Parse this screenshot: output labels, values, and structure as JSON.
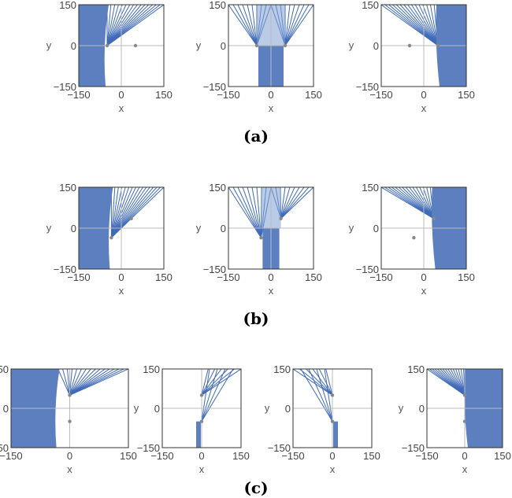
{
  "figure": {
    "axis_labels": {
      "x": "x",
      "y": "y"
    },
    "ticks": [
      "−150",
      "0",
      "150"
    ],
    "ticks_compact": [
      "−150",
      "0",
      "150"
    ],
    "range": [
      -150,
      150
    ],
    "colors": {
      "fill": "#5B7FBF",
      "fill_light": "#7FA0D4",
      "line": "#3F6AB8",
      "point": "#888888",
      "frame": "#333333",
      "axis": "#bbbbbb"
    },
    "rows": [
      {
        "caption": "(a)",
        "panels": [
          {
            "points": [
              [
                -50,
                0
              ],
              [
                50,
                0
              ]
            ],
            "band": "left"
          },
          {
            "points": [
              [
                -50,
                0
              ],
              [
                50,
                0
              ]
            ],
            "band": "center"
          },
          {
            "points": [
              [
                -50,
                0
              ],
              [
                50,
                0
              ]
            ],
            "band": "right"
          }
        ]
      },
      {
        "caption": "(b)",
        "panels": [
          {
            "points": [
              [
                -35,
                -35
              ],
              [
                35,
                35
              ]
            ],
            "band": "left"
          },
          {
            "points": [
              [
                -35,
                -35
              ],
              [
                35,
                35
              ]
            ],
            "band": "center"
          },
          {
            "points": [
              [
                -35,
                -35
              ],
              [
                35,
                35
              ]
            ],
            "band": "right"
          }
        ]
      },
      {
        "caption": "(c)",
        "panels": [
          {
            "points": [
              [
                0,
                50
              ],
              [
                0,
                -50
              ]
            ],
            "band": "left"
          },
          {
            "points": [
              [
                0,
                50
              ],
              [
                0,
                -50
              ]
            ],
            "band": "center-left"
          },
          {
            "points": [
              [
                0,
                50
              ],
              [
                0,
                -50
              ]
            ],
            "band": "center-right"
          },
          {
            "points": [
              [
                0,
                50
              ],
              [
                0,
                -50
              ]
            ],
            "band": "right"
          }
        ]
      }
    ]
  }
}
